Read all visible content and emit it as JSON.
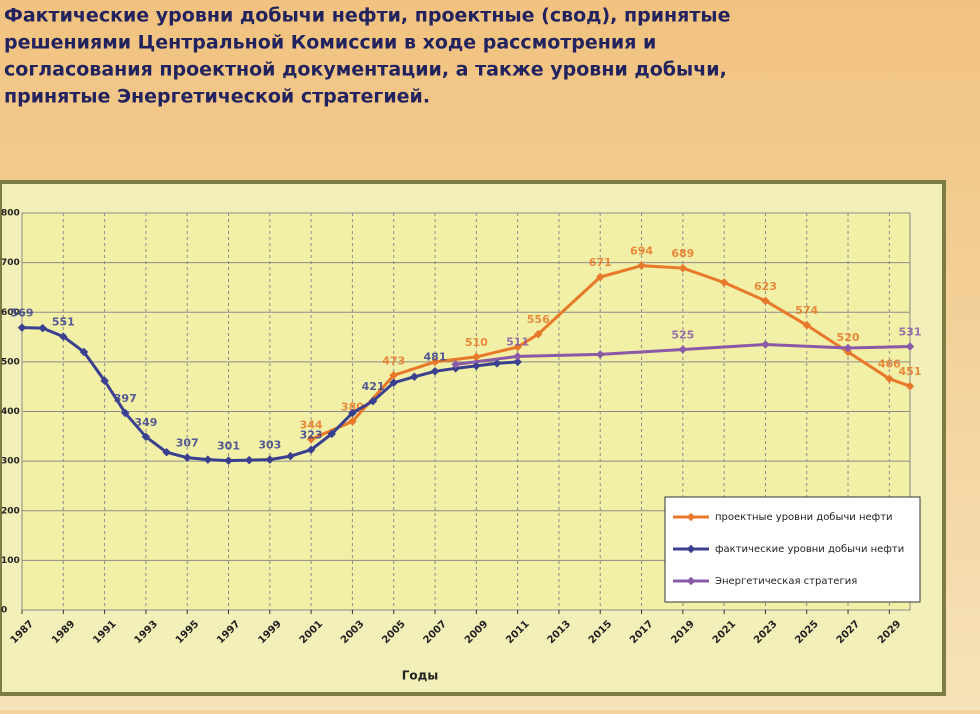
{
  "chart_data": {
    "type": "line",
    "title_lines": [
      "Фактические уровни добычи нефти, проектные (свод), принятые",
      "решениями Центральной Комиссии в ходе рассмотрения и",
      "согласования проектной документации, а также уровни добычи,",
      "принятые Энергетической стратегией."
    ],
    "x_label": "Годы",
    "xlim": [
      1987,
      2030
    ],
    "xticks": [
      1987,
      1989,
      1991,
      1993,
      1995,
      1997,
      1999,
      2001,
      2003,
      2005,
      2007,
      2009,
      2011,
      2013,
      2015,
      2017,
      2019,
      2021,
      2023,
      2025,
      2027,
      2029
    ],
    "ylim": [
      0,
      800
    ],
    "yticks": [
      0,
      100,
      200,
      300,
      400,
      500,
      600,
      700,
      800
    ],
    "grid": true,
    "legend": "lower right",
    "series": [
      {
        "name": "проектные уровни добычи нефти",
        "color": "#e8782a",
        "x": [
          2001,
          2003,
          2005,
          2007,
          2009,
          2011,
          2012,
          2015,
          2017,
          2019,
          2021,
          2023,
          2025,
          2027,
          2029,
          2030
        ],
        "values": [
          344,
          380,
          473,
          500,
          510,
          530,
          556,
          671,
          694,
          689,
          660,
          623,
          574,
          520,
          466,
          451
        ],
        "value_labels": [
          "344",
          "380",
          "473",
          null,
          "510",
          null,
          "556",
          "671",
          "694",
          "689",
          null,
          "623",
          "574",
          "520",
          "466",
          "451"
        ]
      },
      {
        "name": "фактические уровни добычи нефти",
        "color": "#3a3f8f",
        "x": [
          1987,
          1988,
          1989,
          1990,
          1991,
          1992,
          1993,
          1994,
          1995,
          1996,
          1997,
          1998,
          1999,
          2000,
          2001,
          2002,
          2003,
          2004,
          2005,
          2006,
          2007,
          2008,
          2009,
          2010,
          2011
        ],
        "values": [
          569,
          568,
          551,
          520,
          462,
          397,
          349,
          318,
          307,
          303,
          301,
          302,
          303,
          310,
          323,
          355,
          397,
          421,
          458,
          470,
          481,
          487,
          492,
          497,
          500
        ],
        "value_labels": [
          "569",
          null,
          "551",
          null,
          null,
          "397",
          "349",
          null,
          "307",
          null,
          "301",
          null,
          "303",
          null,
          "323",
          null,
          null,
          "421",
          null,
          null,
          "481",
          null,
          null,
          null,
          null
        ]
      },
      {
        "name": "Энергетическая стратегия",
        "color": "#8a5aa8",
        "x": [
          2008,
          2011,
          2015,
          2019,
          2023,
          2027,
          2030
        ],
        "values": [
          495,
          511,
          515,
          525,
          535,
          528,
          531
        ],
        "value_labels": [
          null,
          "511",
          null,
          "525",
          null,
          null,
          "531"
        ]
      }
    ]
  }
}
